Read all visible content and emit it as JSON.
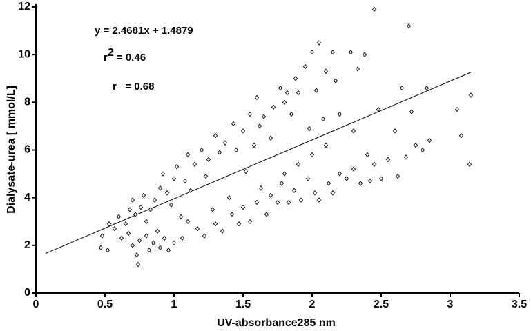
{
  "chart_data": {
    "type": "scatter",
    "x_label": "UV-absorbance285 nm",
    "y_label": "Dialysate-urea [ mmol/L]",
    "annotations": {
      "equation": "y = 2.4681x + 1.4879",
      "r2": {
        "base": "r",
        "sup": "2",
        "text": " = 0.46"
      },
      "r": "r   = 0.68"
    },
    "xlim": [
      0,
      3.5
    ],
    "ylim": [
      0,
      12
    ],
    "xticks": [
      0,
      0.5,
      1,
      1.5,
      2,
      2.5,
      3,
      3.5
    ],
    "yticks": [
      0,
      2,
      4,
      6,
      8,
      10,
      12
    ],
    "color": "#000000",
    "trendline": {
      "x": [
        0.07,
        3.15
      ],
      "y": [
        1.66,
        9.26
      ]
    },
    "x": [
      0.47,
      0.48,
      0.52,
      0.53,
      0.57,
      0.6,
      0.62,
      0.65,
      0.67,
      0.68,
      0.7,
      0.7,
      0.72,
      0.73,
      0.74,
      0.75,
      0.76,
      0.78,
      0.8,
      0.8,
      0.82,
      0.83,
      0.85,
      0.86,
      0.88,
      0.9,
      0.9,
      0.92,
      0.93,
      0.95,
      0.96,
      0.98,
      1.0,
      1.0,
      1.02,
      1.05,
      1.06,
      1.08,
      1.1,
      1.1,
      1.12,
      1.15,
      1.17,
      1.2,
      1.22,
      1.23,
      1.25,
      1.28,
      1.3,
      1.3,
      1.33,
      1.35,
      1.37,
      1.4,
      1.42,
      1.43,
      1.45,
      1.47,
      1.5,
      1.5,
      1.52,
      1.55,
      1.55,
      1.58,
      1.6,
      1.6,
      1.62,
      1.63,
      1.65,
      1.67,
      1.7,
      1.7,
      1.72,
      1.75,
      1.77,
      1.78,
      1.8,
      1.8,
      1.82,
      1.83,
      1.85,
      1.87,
      1.88,
      1.9,
      1.9,
      1.92,
      1.95,
      1.97,
      1.98,
      2.0,
      2.0,
      2.02,
      2.03,
      2.05,
      2.05,
      2.08,
      2.1,
      2.1,
      2.12,
      2.15,
      2.15,
      2.17,
      2.2,
      2.2,
      2.25,
      2.28,
      2.3,
      2.3,
      2.33,
      2.35,
      2.38,
      2.4,
      2.42,
      2.45,
      2.45,
      2.48,
      2.5,
      2.55,
      2.6,
      2.62,
      2.65,
      2.68,
      2.7,
      2.72,
      2.75,
      2.8,
      2.83,
      2.85,
      3.05,
      3.08,
      3.14,
      3.15
    ],
    "y": [
      1.9,
      2.4,
      1.8,
      2.9,
      2.7,
      3.2,
      2.3,
      2.9,
      2.5,
      3.5,
      2.0,
      3.9,
      3.3,
      1.6,
      1.2,
      2.2,
      3.6,
      4.1,
      2.4,
      3.0,
      1.8,
      3.5,
      2.1,
      3.9,
      2.6,
      4.4,
      1.9,
      5.0,
      2.3,
      4.2,
      1.8,
      3.7,
      4.8,
      2.1,
      5.3,
      3.2,
      2.3,
      4.7,
      5.8,
      3.0,
      4.3,
      5.4,
      2.7,
      6.0,
      2.4,
      4.9,
      5.6,
      3.5,
      6.6,
      2.9,
      5.9,
      2.6,
      6.3,
      4.0,
      3.3,
      7.1,
      6.0,
      2.9,
      6.8,
      3.6,
      5.1,
      7.5,
      3.0,
      6.2,
      8.2,
      3.8,
      7.0,
      4.4,
      7.4,
      3.3,
      6.5,
      4.1,
      7.8,
      3.8,
      8.6,
      4.6,
      8.0,
      5.0,
      8.4,
      3.8,
      7.5,
      4.3,
      9.0,
      5.4,
      8.4,
      3.9,
      9.5,
      4.8,
      6.9,
      10.1,
      5.8,
      4.2,
      8.5,
      10.5,
      3.9,
      7.3,
      9.3,
      6.2,
      4.6,
      10.1,
      4.2,
      8.9,
      5.0,
      7.5,
      4.8,
      10.1,
      6.8,
      5.2,
      9.4,
      4.6,
      10.0,
      5.8,
      4.7,
      11.9,
      5.4,
      7.7,
      4.8,
      5.6,
      6.8,
      4.9,
      8.6,
      5.7,
      11.2,
      7.6,
      6.2,
      6.0,
      8.6,
      6.4,
      7.7,
      6.6,
      5.4,
      8.3
    ]
  }
}
